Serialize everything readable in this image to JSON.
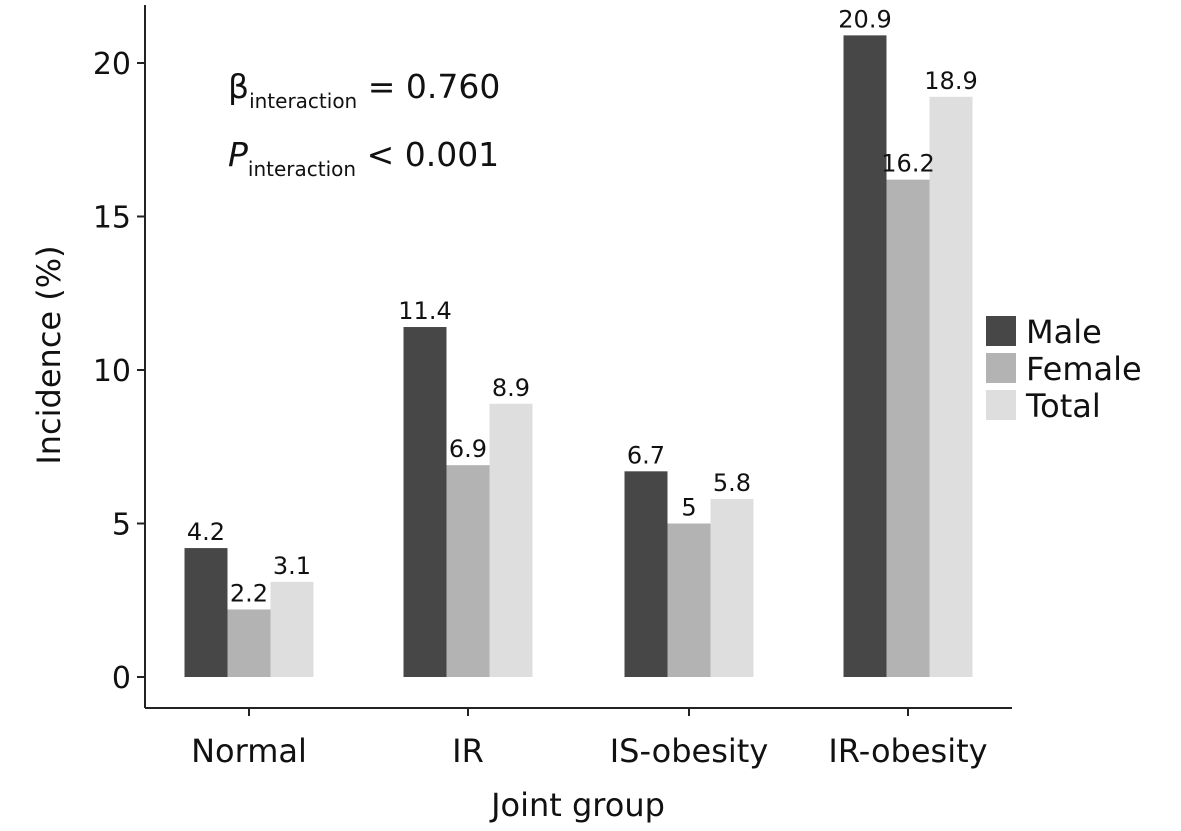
{
  "chart_data": {
    "type": "bar",
    "categories": [
      "Normal",
      "IR",
      "IS-obesity",
      "IR-obesity"
    ],
    "series": [
      {
        "name": "Male",
        "values": [
          4.2,
          11.4,
          6.7,
          20.9
        ],
        "labels": [
          "4.2",
          "11.4",
          "6.7",
          "20.9"
        ],
        "color": "#474747"
      },
      {
        "name": "Female",
        "values": [
          2.2,
          6.9,
          5.0,
          16.2
        ],
        "labels": [
          "2.2",
          "6.9",
          "5",
          "16.2"
        ],
        "color": "#b3b3b3"
      },
      {
        "name": "Total",
        "values": [
          3.1,
          8.9,
          5.8,
          18.9
        ],
        "labels": [
          "3.1",
          "8.9",
          "5.8",
          "18.9"
        ],
        "color": "#dedede"
      }
    ],
    "title": "",
    "xlabel": "Joint group",
    "ylabel": "Incidence (%)",
    "ylim": [
      0,
      21.5
    ],
    "yticks": [
      0,
      5,
      10,
      15,
      20
    ],
    "ytick_labels": [
      "0",
      "5",
      "10",
      "15",
      "20"
    ],
    "grid": false,
    "legend_position": "right",
    "annotations": [
      {
        "symbol": "β",
        "subscript": "interaction",
        "text": " = 0.760",
        "italic": false
      },
      {
        "symbol": "P",
        "subscript": "interaction",
        "text": " < 0.001",
        "italic": true
      }
    ]
  }
}
